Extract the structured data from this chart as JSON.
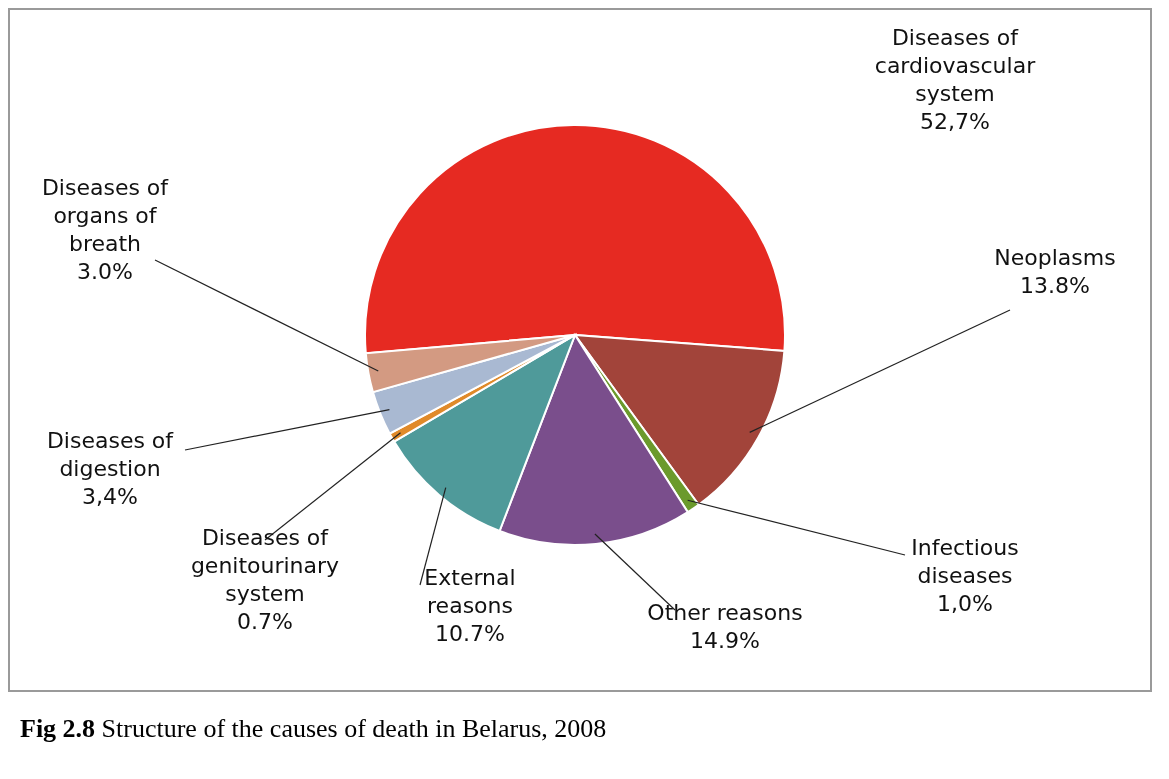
{
  "chart_data": {
    "type": "pie",
    "title": "Fig 2.8 Structure of the causes of death in Belarus, 2008",
    "categories": [
      "Diseases of cardiovascular system",
      "Neoplasms",
      "Infectious diseases",
      "Other reasons",
      "External reasons",
      "Diseases of genitourinary system",
      "Diseases of digestion",
      "Diseases of organs of breath"
    ],
    "values": [
      52.7,
      13.8,
      1.0,
      14.9,
      10.7,
      0.7,
      3.4,
      3.0
    ],
    "value_labels": [
      "52,7%",
      "13.8%",
      "1,0%",
      "14.9%",
      "10.7%",
      "0.7%",
      "3,4%",
      "3.0%"
    ],
    "colors": [
      "#e62a22",
      "#a2443a",
      "#6b9a2c",
      "#7a4e8c",
      "#4f9a9a",
      "#e08a2a",
      "#a9b9d2",
      "#d39a82"
    ],
    "legend": false
  }
}
